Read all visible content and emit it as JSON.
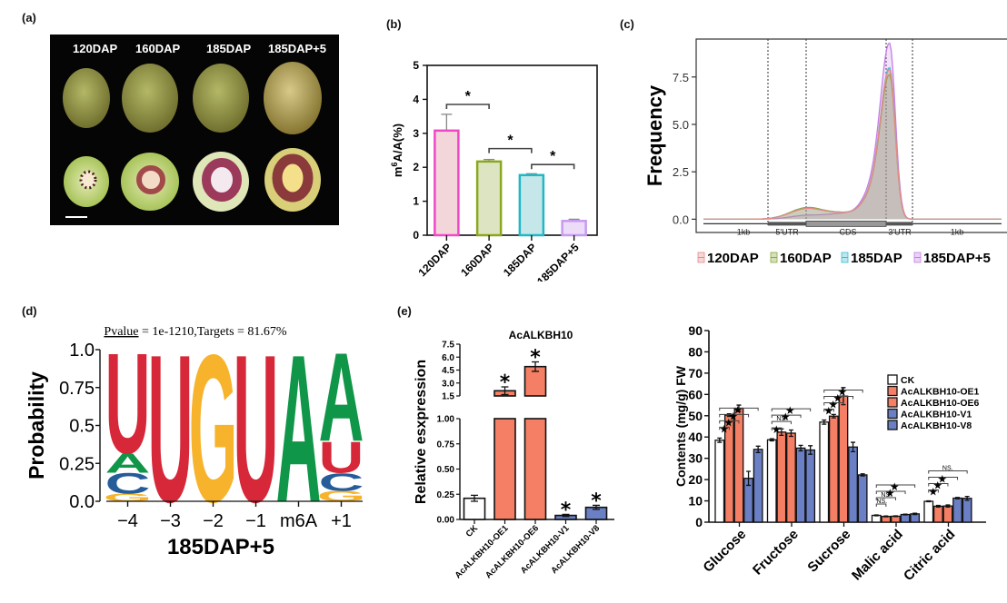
{
  "panels": {
    "a": {
      "label": "(a)",
      "stages": [
        "120DAP",
        "160DAP",
        "185DAP",
        "185DAP+5"
      ]
    },
    "b": {
      "label": "(b)"
    },
    "c": {
      "label": "(c)"
    },
    "d": {
      "label": "(d)"
    },
    "e": {
      "label": "(e)"
    }
  },
  "chart_data": [
    {
      "id": "b",
      "type": "bar",
      "title": "",
      "xlabel": "",
      "ylabel": "m6A/A(%)",
      "ylim": [
        0,
        5
      ],
      "yticks": [
        0,
        1,
        2,
        3,
        4,
        5
      ],
      "categories": [
        "120DAP",
        "160DAP",
        "185DAP",
        "185DAP+5"
      ],
      "values": [
        3.08,
        2.17,
        1.77,
        0.42
      ],
      "errors": [
        0.48,
        0.06,
        0.04,
        0.05
      ],
      "colors": {
        "stroke": [
          "#f048c8",
          "#8aa81e",
          "#1fb8c4",
          "#c79af0"
        ],
        "fill": [
          "#f3d6d9",
          "#dde4c2",
          "#c6e7e9",
          "#ecdcf8"
        ]
      },
      "significance": [
        {
          "from": "120DAP",
          "to": "160DAP",
          "label": "*"
        },
        {
          "from": "160DAP",
          "to": "185DAP",
          "label": "*"
        },
        {
          "from": "185DAP",
          "to": "185DAP+5",
          "label": "*"
        }
      ]
    },
    {
      "id": "c",
      "type": "area",
      "title": "",
      "xlabel": "",
      "ylabel": "Frequency",
      "ylim": [
        -0.7,
        9.5
      ],
      "yticks": [
        "0.0",
        "2.5",
        "5.0",
        "7.5"
      ],
      "regions": [
        "1kb",
        "5'UTR",
        "CDS",
        "3'UTR",
        "1kb"
      ],
      "legend_position": "bottom",
      "series": [
        {
          "name": "120DAP",
          "color": "#e88a8a",
          "peak_5utr": 0.55,
          "peak_3utr": 7.6
        },
        {
          "name": "160DAP",
          "color": "#8aa83c",
          "peak_5utr": 0.6,
          "peak_3utr": 7.35
        },
        {
          "name": "185DAP",
          "color": "#3cbcd0",
          "peak_5utr": 0.6,
          "peak_3utr": 7.7
        },
        {
          "name": "185DAP+5",
          "color": "#c57de8",
          "peak_5utr": 0.2,
          "peak_3utr": 8.95
        }
      ]
    },
    {
      "id": "d",
      "type": "sequence-logo",
      "title": "Pvalue = 1e-1210,Targets = 81.67%",
      "title_underlined_word": "Pvalue",
      "title_rest": " = 1e-1210,Targets = 81.67%",
      "xlabel": "185DAP+5",
      "ylabel": "Probability",
      "ylim": [
        0,
        1
      ],
      "yticks": [
        "0.0",
        "0.25",
        "0.5",
        "0.75",
        "1.0"
      ],
      "positions": [
        "−4",
        "−3",
        "−2",
        "−1",
        "m6A",
        "+1"
      ],
      "stacks": [
        [
          {
            "base": "G",
            "p": 0.05
          },
          {
            "base": "C",
            "p": 0.14
          },
          {
            "base": "A",
            "p": 0.13
          },
          {
            "base": "U",
            "p": 0.68
          }
        ],
        [
          {
            "base": "U",
            "p": 1.0
          }
        ],
        [
          {
            "base": "G",
            "p": 1.0
          }
        ],
        [
          {
            "base": "U",
            "p": 1.0
          }
        ],
        [
          {
            "base": "A",
            "p": 1.0
          }
        ],
        [
          {
            "base": "G",
            "p": 0.07
          },
          {
            "base": "C",
            "p": 0.12
          },
          {
            "base": "U",
            "p": 0.21
          },
          {
            "base": "A",
            "p": 0.6
          }
        ]
      ],
      "base_colors": {
        "A": "#109648",
        "C": "#255c99",
        "G": "#f7b32b",
        "U": "#d62839"
      }
    },
    {
      "id": "e1",
      "type": "bar",
      "title": "AcALKBH10",
      "xlabel": "",
      "ylabel": "Relative esxpression",
      "ylim_lower": [
        0,
        1.0
      ],
      "ylim_upper": [
        1.5,
        7.5
      ],
      "yticks_lower": [
        "0.00",
        "0.25",
        "0.50",
        "0.75",
        "1.00"
      ],
      "yticks_upper": [
        "1.5",
        "3.0",
        "4.5",
        "6.0",
        "7.5"
      ],
      "categories": [
        "CK",
        "AcALKBH10-OE1",
        "AcALKBH10-OE6",
        "AcALKBH10-V1",
        "AcALKBH10-V8"
      ],
      "values": [
        0.21,
        2.1,
        4.9,
        0.04,
        0.12
      ],
      "errors": [
        0.03,
        0.45,
        0.55,
        0.01,
        0.02
      ],
      "significance": [
        "",
        "*",
        "*",
        "*",
        "*"
      ],
      "colors": [
        "#ffffff",
        "#f47f64",
        "#f47f64",
        "#6a7fc4",
        "#6a7fc4"
      ]
    },
    {
      "id": "e2",
      "type": "bar",
      "title": "",
      "xlabel": "",
      "ylabel": "Contents (mg/g) FW",
      "ylim": [
        0,
        90
      ],
      "yticks": [
        0,
        10,
        20,
        30,
        40,
        50,
        60,
        70,
        80,
        90
      ],
      "categories": [
        "Glucose",
        "Fructose",
        "Sucrose",
        "Malic acid",
        "Citric acid"
      ],
      "legend_position": "right",
      "series": [
        {
          "name": "CK",
          "color": "#ffffff",
          "values": [
            38.5,
            38.7,
            47.0,
            3.2,
            9.8
          ],
          "errors": [
            1.0,
            0.5,
            1.0,
            0.2,
            0.2
          ]
        },
        {
          "name": "AcALKBH10-OE1",
          "color": "#f47f64",
          "values": [
            50.3,
            42.3,
            49.8,
            2.7,
            7.5
          ],
          "errors": [
            0.6,
            1.5,
            0.8,
            0.2,
            0.4
          ]
        },
        {
          "name": "AcALKBH10-OE6",
          "color": "#f47f64",
          "values": [
            53.5,
            41.8,
            59.2,
            2.8,
            7.6
          ],
          "errors": [
            1.5,
            1.5,
            4.0,
            0.2,
            0.5
          ]
        },
        {
          "name": "AcALKBH10-V1",
          "color": "#6a7fc4",
          "values": [
            20.6,
            34.8,
            35.3,
            3.6,
            11.3
          ],
          "errors": [
            3.3,
            1.3,
            2.2,
            0.2,
            0.3
          ]
        },
        {
          "name": "AcALKBH10-V8",
          "color": "#6a7fc4",
          "values": [
            34.2,
            33.9,
            22.2,
            3.9,
            11.2
          ],
          "errors": [
            1.5,
            2.0,
            0.5,
            0.3,
            0.9
          ]
        }
      ],
      "significance": [
        [
          "*",
          "*",
          "*",
          "*"
        ],
        [
          "*",
          "NS.",
          "*",
          "*"
        ],
        [
          "*",
          "*",
          "*",
          "*"
        ],
        [
          "NS.",
          "NS.",
          "*",
          "*"
        ],
        [
          "*",
          "*",
          "*",
          "NS."
        ]
      ]
    }
  ]
}
